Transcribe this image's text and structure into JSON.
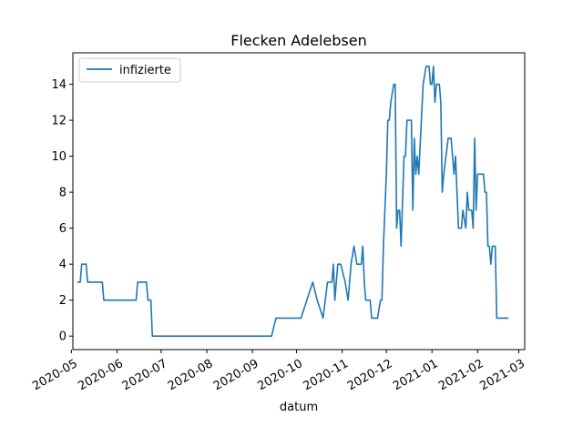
{
  "chart_data": {
    "type": "line",
    "title": "Flecken Adelebsen",
    "xlabel": "datum",
    "ylabel": "",
    "xlim": [
      "2020-05-02",
      "2021-03-05"
    ],
    "ylim": [
      -0.75,
      15.75
    ],
    "yticks": [
      0,
      2,
      4,
      6,
      8,
      10,
      12,
      14
    ],
    "xticks": [
      {
        "date": "2020-05-01",
        "label": "2020-05"
      },
      {
        "date": "2020-06-01",
        "label": "2020-06"
      },
      {
        "date": "2020-07-01",
        "label": "2020-07"
      },
      {
        "date": "2020-08-01",
        "label": "2020-08"
      },
      {
        "date": "2020-09-01",
        "label": "2020-09"
      },
      {
        "date": "2020-10-01",
        "label": "2020-10"
      },
      {
        "date": "2020-11-01",
        "label": "2020-11"
      },
      {
        "date": "2020-12-01",
        "label": "2020-12"
      },
      {
        "date": "2021-01-01",
        "label": "2021-01"
      },
      {
        "date": "2021-02-01",
        "label": "2021-02"
      },
      {
        "date": "2021-03-01",
        "label": "2021-03"
      }
    ],
    "grid": false,
    "legend_position": "top-left",
    "series": [
      {
        "name": "infizierte",
        "color": "#1f77b4",
        "points": [
          [
            "2020-05-05",
            3
          ],
          [
            "2020-05-07",
            3
          ],
          [
            "2020-05-08",
            4
          ],
          [
            "2020-05-11",
            4
          ],
          [
            "2020-05-12",
            3
          ],
          [
            "2020-05-22",
            3
          ],
          [
            "2020-05-23",
            2
          ],
          [
            "2020-06-14",
            2
          ],
          [
            "2020-06-15",
            3
          ],
          [
            "2020-06-21",
            3
          ],
          [
            "2020-06-22",
            2
          ],
          [
            "2020-06-24",
            2
          ],
          [
            "2020-06-25",
            0
          ],
          [
            "2020-09-14",
            0
          ],
          [
            "2020-09-17",
            1
          ],
          [
            "2020-10-04",
            1
          ],
          [
            "2020-10-08",
            2
          ],
          [
            "2020-10-12",
            3
          ],
          [
            "2020-10-15",
            2
          ],
          [
            "2020-10-19",
            1
          ],
          [
            "2020-10-22",
            3
          ],
          [
            "2020-10-25",
            3
          ],
          [
            "2020-10-26",
            4
          ],
          [
            "2020-10-27",
            2
          ],
          [
            "2020-10-28",
            3
          ],
          [
            "2020-10-29",
            4
          ],
          [
            "2020-10-31",
            4
          ],
          [
            "2020-11-03",
            3
          ],
          [
            "2020-11-05",
            2
          ],
          [
            "2020-11-07",
            4
          ],
          [
            "2020-11-09",
            5
          ],
          [
            "2020-11-11",
            4
          ],
          [
            "2020-11-14",
            4
          ],
          [
            "2020-11-15",
            5
          ],
          [
            "2020-11-16",
            3
          ],
          [
            "2020-11-17",
            2
          ],
          [
            "2020-11-20",
            2
          ],
          [
            "2020-11-21",
            1
          ],
          [
            "2020-11-25",
            1
          ],
          [
            "2020-11-27",
            2
          ],
          [
            "2020-11-28",
            2
          ],
          [
            "2020-11-29",
            5
          ],
          [
            "2020-12-01",
            9
          ],
          [
            "2020-12-02",
            12
          ],
          [
            "2020-12-03",
            12
          ],
          [
            "2020-12-04",
            13
          ],
          [
            "2020-12-06",
            14
          ],
          [
            "2020-12-07",
            14
          ],
          [
            "2020-12-08",
            6
          ],
          [
            "2020-12-09",
            7
          ],
          [
            "2020-12-10",
            7
          ],
          [
            "2020-12-11",
            5
          ],
          [
            "2020-12-13",
            10
          ],
          [
            "2020-12-14",
            10
          ],
          [
            "2020-12-15",
            12
          ],
          [
            "2020-12-18",
            12
          ],
          [
            "2020-12-19",
            7
          ],
          [
            "2020-12-20",
            11
          ],
          [
            "2020-12-21",
            9
          ],
          [
            "2020-12-22",
            10
          ],
          [
            "2020-12-23",
            9
          ],
          [
            "2020-12-26",
            14
          ],
          [
            "2020-12-28",
            15
          ],
          [
            "2020-12-30",
            15
          ],
          [
            "2020-12-31",
            14
          ],
          [
            "2021-01-01",
            14
          ],
          [
            "2021-01-02",
            15
          ],
          [
            "2021-01-03",
            13
          ],
          [
            "2021-01-04",
            14
          ],
          [
            "2021-01-06",
            14
          ],
          [
            "2021-01-07",
            13
          ],
          [
            "2021-01-08",
            8
          ],
          [
            "2021-01-09",
            9
          ],
          [
            "2021-01-12",
            11
          ],
          [
            "2021-01-14",
            11
          ],
          [
            "2021-01-15",
            10
          ],
          [
            "2021-01-16",
            9
          ],
          [
            "2021-01-17",
            10
          ],
          [
            "2021-01-18",
            8
          ],
          [
            "2021-01-19",
            6
          ],
          [
            "2021-01-21",
            6
          ],
          [
            "2021-01-22",
            7
          ],
          [
            "2021-01-24",
            6
          ],
          [
            "2021-01-25",
            8
          ],
          [
            "2021-01-26",
            7
          ],
          [
            "2021-01-28",
            7
          ],
          [
            "2021-01-29",
            6
          ],
          [
            "2021-01-30",
            11
          ],
          [
            "2021-01-31",
            7
          ],
          [
            "2021-02-01",
            9
          ],
          [
            "2021-02-05",
            9
          ],
          [
            "2021-02-06",
            8
          ],
          [
            "2021-02-07",
            8
          ],
          [
            "2021-02-08",
            5
          ],
          [
            "2021-02-09",
            5
          ],
          [
            "2021-02-10",
            4
          ],
          [
            "2021-02-11",
            5
          ],
          [
            "2021-02-13",
            5
          ],
          [
            "2021-02-14",
            1
          ],
          [
            "2021-02-22",
            1
          ]
        ]
      }
    ]
  }
}
